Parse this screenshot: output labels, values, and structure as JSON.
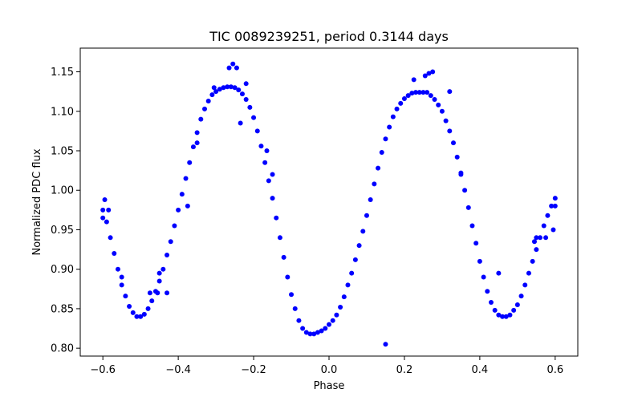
{
  "chart_data": {
    "type": "scatter",
    "title": "TIC 0089239251, period 0.3144 days",
    "xlabel": "Phase",
    "ylabel": "Normalized PDC flux",
    "xlim": [
      -0.66,
      0.66
    ],
    "ylim": [
      0.79,
      1.18
    ],
    "xticks": [
      -0.6,
      -0.4,
      -0.2,
      0.0,
      0.2,
      0.4,
      0.6
    ],
    "xtick_labels": [
      "−0.6",
      "−0.4",
      "−0.2",
      "0.0",
      "0.2",
      "0.4",
      "0.6"
    ],
    "yticks": [
      0.8,
      0.85,
      0.9,
      0.95,
      1.0,
      1.05,
      1.1,
      1.15
    ],
    "ytick_labels": [
      "0.80",
      "0.85",
      "0.90",
      "0.95",
      "1.00",
      "1.05",
      "1.10",
      "1.15"
    ],
    "grid": false,
    "marker_color": "#0000ff",
    "series": [
      {
        "x": [
          -0.6,
          -0.59,
          -0.58,
          -0.57,
          -0.56,
          -0.55,
          -0.54,
          -0.53,
          -0.52,
          -0.51,
          -0.5,
          -0.49,
          -0.48,
          -0.47,
          -0.46,
          -0.45,
          -0.44,
          -0.43,
          -0.42,
          -0.41,
          -0.4,
          -0.39,
          -0.38,
          -0.37,
          -0.36,
          -0.35,
          -0.34,
          -0.33,
          -0.32,
          -0.31,
          -0.3,
          -0.29,
          -0.28,
          -0.27,
          -0.26,
          -0.25,
          -0.24,
          -0.23,
          -0.22,
          -0.21,
          -0.2,
          -0.19,
          -0.18,
          -0.17,
          -0.16,
          -0.15,
          -0.14,
          -0.13,
          -0.12,
          -0.11,
          -0.1,
          -0.09,
          -0.08,
          -0.07,
          -0.06,
          -0.05,
          -0.04,
          -0.03,
          -0.02,
          -0.01,
          0.0,
          0.01,
          0.02,
          0.03,
          0.04,
          0.05,
          0.06,
          0.07,
          0.08,
          0.09,
          0.1,
          0.11,
          0.12,
          0.13,
          0.14,
          0.15,
          0.16,
          0.17,
          0.18,
          0.19,
          0.2,
          0.21,
          0.22,
          0.23,
          0.24,
          0.25,
          0.26,
          0.27,
          0.28,
          0.29,
          0.3,
          0.31,
          0.32,
          0.33,
          0.34,
          0.35,
          0.36,
          0.37,
          0.38,
          0.39,
          0.4,
          0.41,
          0.42,
          0.43,
          0.44,
          0.45,
          0.46,
          0.47,
          0.48,
          0.49,
          0.5,
          0.51,
          0.52,
          0.53,
          0.54,
          0.55,
          0.56,
          0.57,
          0.58,
          0.59,
          0.6,
          -0.595,
          -0.585,
          -0.475,
          -0.455,
          -0.265,
          -0.255,
          -0.245,
          -0.22,
          -0.305,
          -0.235,
          -0.165,
          -0.375,
          -0.43,
          0.255,
          0.265,
          0.275,
          0.225,
          0.32,
          0.545,
          0.575,
          0.595,
          -0.6,
          -0.55,
          -0.45,
          -0.35,
          -0.15,
          0.15,
          0.35,
          0.45,
          0.55,
          0.6
        ],
        "y": [
          0.975,
          0.96,
          0.94,
          0.92,
          0.9,
          0.88,
          0.866,
          0.853,
          0.845,
          0.84,
          0.84,
          0.843,
          0.85,
          0.86,
          0.872,
          0.885,
          0.9,
          0.918,
          0.935,
          0.955,
          0.975,
          0.995,
          1.015,
          1.035,
          1.055,
          1.073,
          1.09,
          1.103,
          1.113,
          1.121,
          1.125,
          1.128,
          1.13,
          1.131,
          1.131,
          1.13,
          1.127,
          1.122,
          1.115,
          1.105,
          1.092,
          1.075,
          1.056,
          1.035,
          1.012,
          0.99,
          0.965,
          0.94,
          0.915,
          0.89,
          0.868,
          0.85,
          0.835,
          0.825,
          0.82,
          0.818,
          0.818,
          0.82,
          0.822,
          0.825,
          0.83,
          0.835,
          0.842,
          0.852,
          0.865,
          0.88,
          0.895,
          0.912,
          0.93,
          0.948,
          0.968,
          0.988,
          1.008,
          1.028,
          1.048,
          1.065,
          1.08,
          1.093,
          1.103,
          1.11,
          1.116,
          1.12,
          1.123,
          1.124,
          1.124,
          1.124,
          1.124,
          1.12,
          1.115,
          1.108,
          1.1,
          1.088,
          1.075,
          1.06,
          1.042,
          1.022,
          1.0,
          0.978,
          0.955,
          0.933,
          0.91,
          0.89,
          0.872,
          0.858,
          0.848,
          0.842,
          0.84,
          0.84,
          0.842,
          0.848,
          0.855,
          0.866,
          0.88,
          0.895,
          0.91,
          0.925,
          0.94,
          0.955,
          0.968,
          0.98,
          0.99,
          0.988,
          0.975,
          0.87,
          0.87,
          1.155,
          1.16,
          1.155,
          1.135,
          1.13,
          1.085,
          1.05,
          0.98,
          0.87,
          1.145,
          1.148,
          1.15,
          1.14,
          1.125,
          0.935,
          0.94,
          0.95,
          0.965,
          0.89,
          0.895,
          1.06,
          1.02,
          0.805,
          1.02,
          0.895,
          0.94,
          0.98
        ]
      }
    ]
  }
}
